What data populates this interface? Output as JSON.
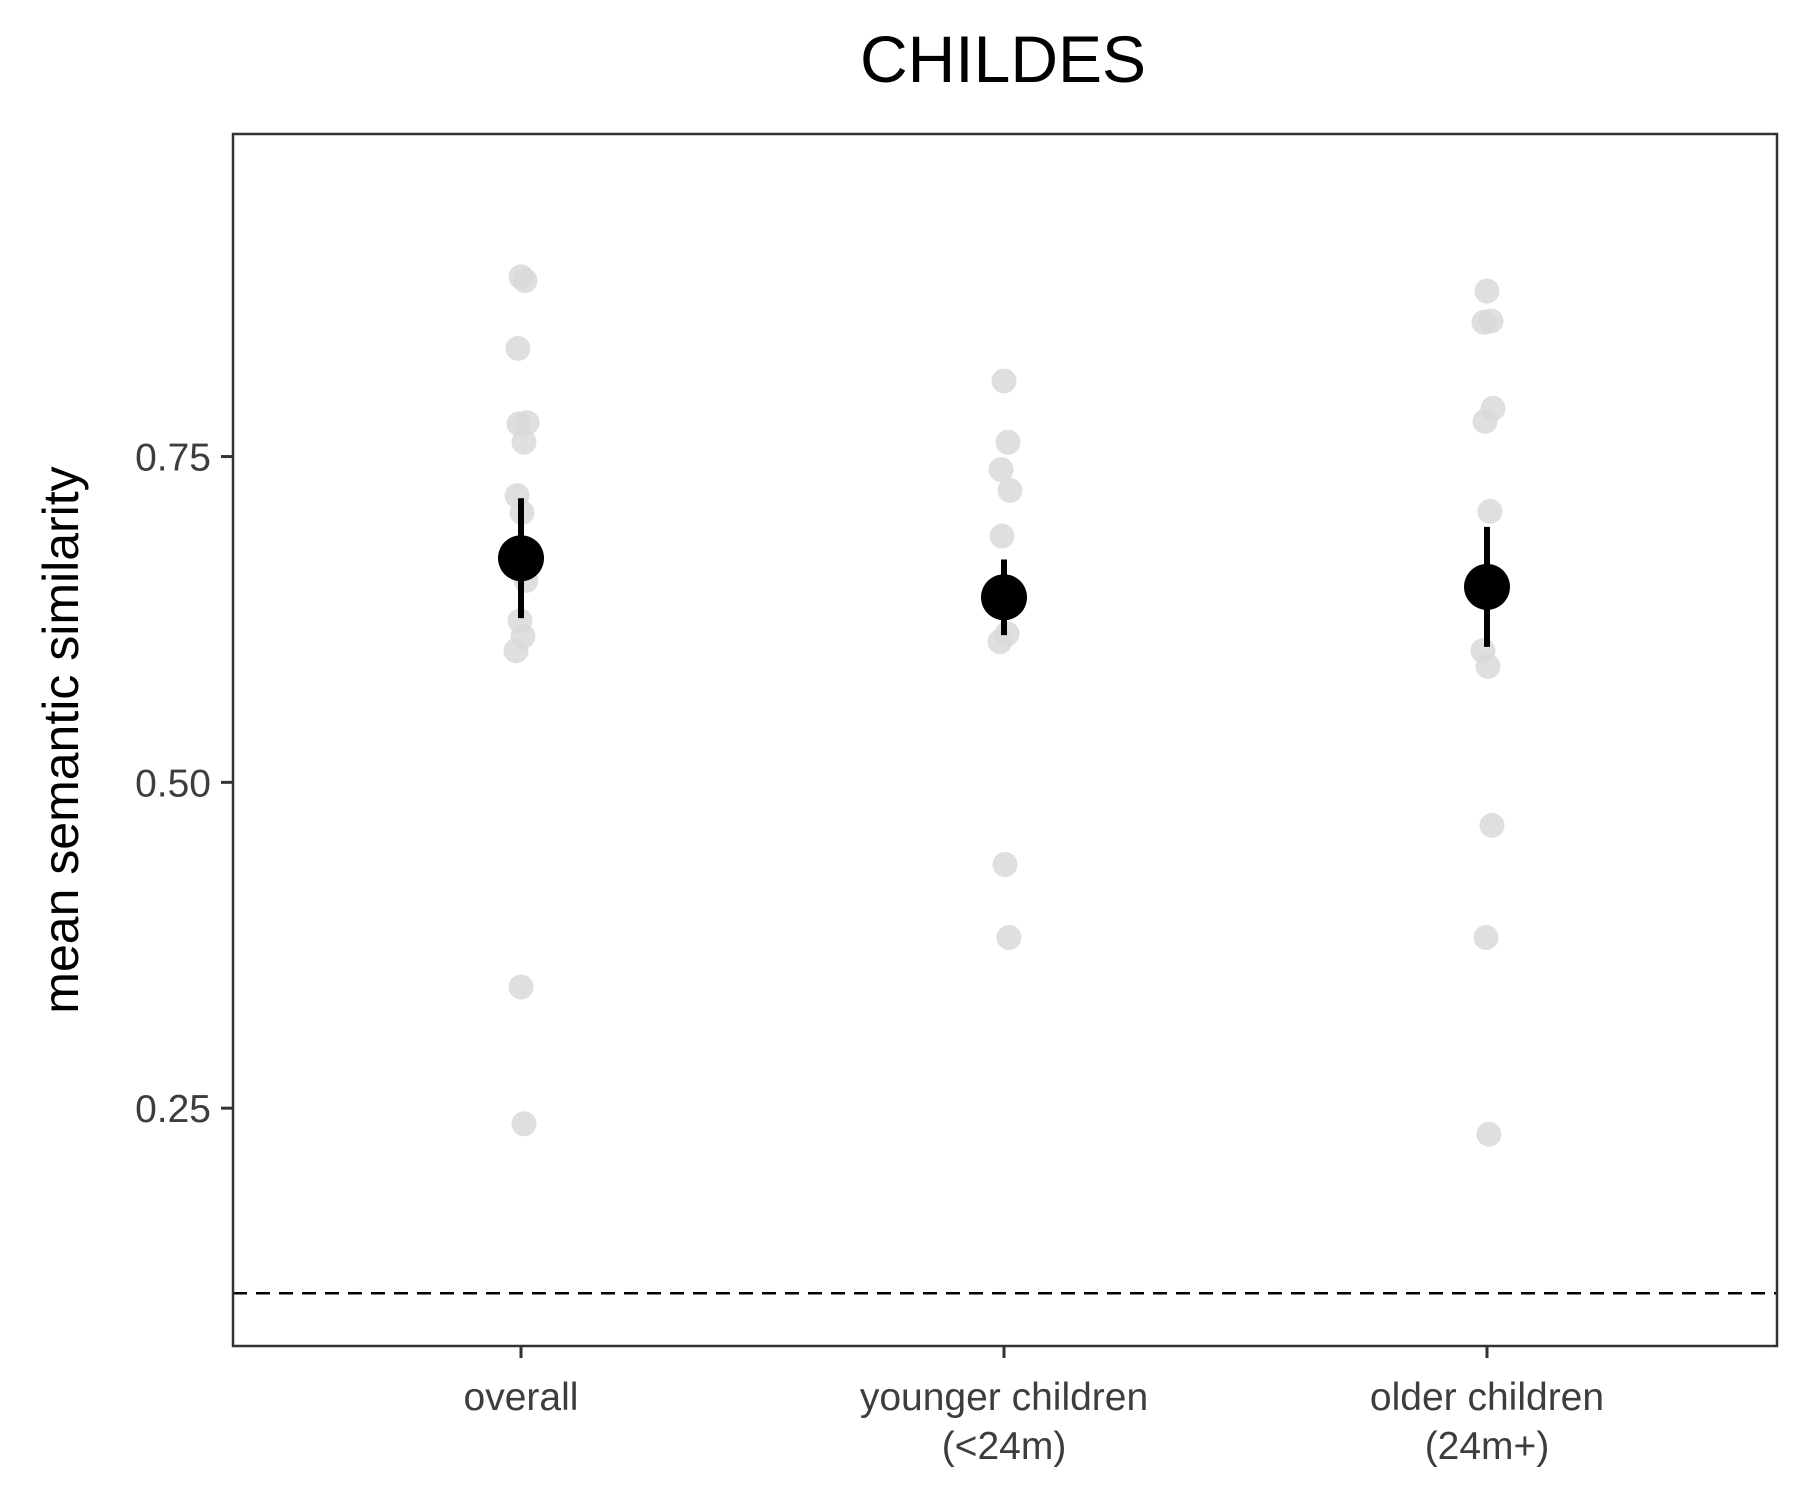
{
  "chart_data": {
    "type": "scatter",
    "title": "CHILDES",
    "xlabel": "",
    "ylabel": "mean semantic similarity",
    "ylim": [
      0.0675,
      0.9975
    ],
    "y_ticks": [
      {
        "value": 0.25,
        "label": "0.25"
      },
      {
        "value": 0.5,
        "label": "0.50"
      },
      {
        "value": 0.75,
        "label": "0.75"
      }
    ],
    "reference_line": {
      "value": 0.108,
      "style": "dashed"
    },
    "grid": false,
    "legend": "none",
    "categories": [
      {
        "lines": [
          "overall"
        ]
      },
      {
        "lines": [
          "younger children",
          "(<24m)"
        ]
      },
      {
        "lines": [
          "older children",
          "(24m+)"
        ]
      }
    ],
    "points": [
      {
        "category": 0,
        "jitter": 0.0,
        "values": [
          0.888,
          0.885,
          0.833,
          0.776,
          0.775,
          0.761,
          0.72,
          0.707,
          0.655,
          0.624,
          0.612,
          0.601,
          0.343,
          0.238
        ]
      },
      {
        "category": 1,
        "jitter": 0.0,
        "values": [
          0.808,
          0.761,
          0.74,
          0.724,
          0.689,
          0.614,
          0.608,
          0.437,
          0.381
        ]
      },
      {
        "category": 2,
        "jitter": 0.0,
        "values": [
          0.877,
          0.854,
          0.853,
          0.787,
          0.777,
          0.708,
          0.601,
          0.589,
          0.467,
          0.381,
          0.23
        ]
      }
    ],
    "summary": [
      {
        "category": 0,
        "mean": 0.672,
        "ci_low": 0.626,
        "ci_high": 0.718
      },
      {
        "category": 1,
        "mean": 0.642,
        "ci_low": 0.613,
        "ci_high": 0.671
      },
      {
        "category": 2,
        "mean": 0.65,
        "ci_low": 0.604,
        "ci_high": 0.696
      }
    ],
    "colors": {
      "points": "#d9d9d9",
      "summary": "#000000",
      "axis": "#333333",
      "tick_text": "#3d3d3d"
    }
  }
}
